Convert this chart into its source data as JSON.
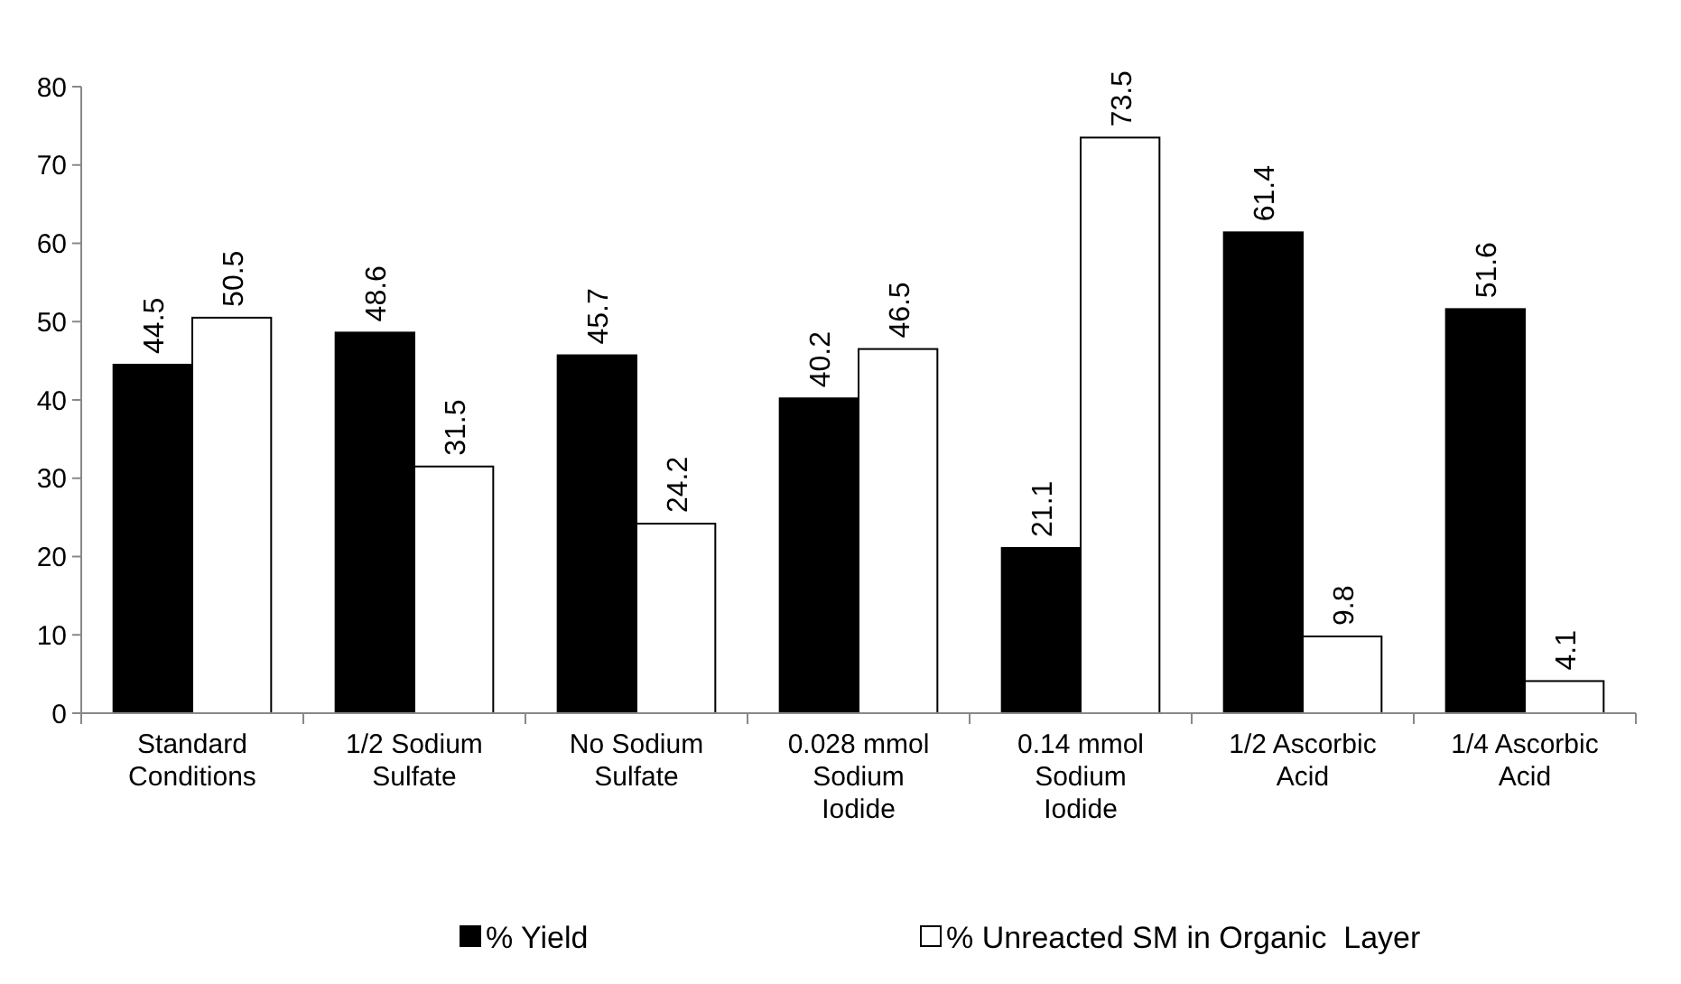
{
  "chart_data": {
    "type": "bar",
    "categories": [
      "Standard Conditions",
      "1/2 Sodium Sulfate",
      "No Sodium Sulfate",
      "0.028 mmol Sodium Iodide",
      "0.14 mmol Sodium Iodide",
      "1/2 Ascorbic Acid",
      "1/4 Ascorbic Acid"
    ],
    "series": [
      {
        "name": "% Yield",
        "color": "#000000",
        "values": [
          44.5,
          48.6,
          45.7,
          40.2,
          21.1,
          61.4,
          51.6
        ]
      },
      {
        "name": "% Unreacted SM in Organic  Layer",
        "color": "#ffffff",
        "values": [
          50.5,
          31.5,
          24.2,
          46.5,
          73.5,
          9.8,
          4.1
        ]
      }
    ],
    "ylim": [
      0,
      80
    ],
    "yticks": [
      0,
      10,
      20,
      30,
      40,
      50,
      60,
      70,
      80
    ],
    "data_labels": true,
    "legend": "bottom",
    "grid": false
  }
}
